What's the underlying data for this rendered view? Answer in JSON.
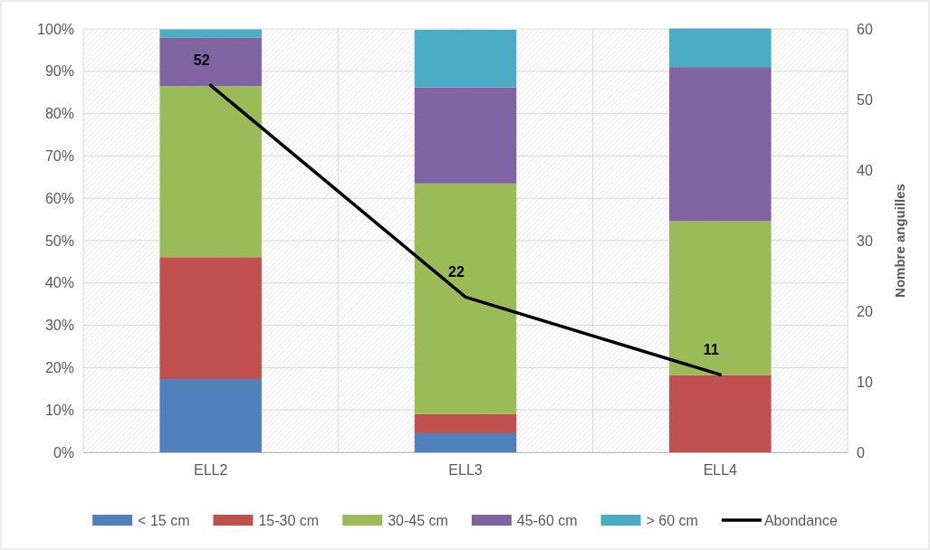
{
  "chart_data": {
    "type": "bar",
    "stacked": true,
    "categories": [
      "ELL2",
      "ELL3",
      "ELL4"
    ],
    "series": [
      {
        "name": "< 15 cm",
        "color": "#4f81bd",
        "values": [
          17.3,
          4.5,
          0
        ]
      },
      {
        "name": "15-30 cm",
        "color": "#c0504d",
        "values": [
          28.8,
          4.5,
          18.2
        ]
      },
      {
        "name": "30-45 cm",
        "color": "#9bbb59",
        "values": [
          40.4,
          54.5,
          36.4
        ]
      },
      {
        "name": "45-60 cm",
        "color": "#8064a2",
        "values": [
          11.5,
          22.7,
          36.4
        ]
      },
      {
        "name": "> 60 cm",
        "color": "#4bacc6",
        "values": [
          1.9,
          13.6,
          9.1
        ]
      },
      {
        "name": "Abondance",
        "type": "line",
        "axis": "y2",
        "color": "#000000",
        "values": [
          52,
          22,
          11
        ],
        "value_labels": [
          "52",
          "22",
          "11"
        ]
      }
    ],
    "ylim": [
      0,
      100
    ],
    "yticks": [
      {
        "value": 0,
        "label": "0%"
      },
      {
        "value": 10,
        "label": "10%"
      },
      {
        "value": 20,
        "label": "20%"
      },
      {
        "value": 30,
        "label": "30%"
      },
      {
        "value": 40,
        "label": "40%"
      },
      {
        "value": 50,
        "label": "50%"
      },
      {
        "value": 60,
        "label": "60%"
      },
      {
        "value": 70,
        "label": "70%"
      },
      {
        "value": 80,
        "label": "80%"
      },
      {
        "value": 90,
        "label": "90%"
      },
      {
        "value": 100,
        "label": "100%"
      }
    ],
    "y2lim": [
      0,
      60
    ],
    "y2ticks": [
      0,
      10,
      20,
      30,
      40,
      50,
      60
    ],
    "y2label": "Nombre anguilles",
    "grid": true,
    "legend": "bottom",
    "marker": "none",
    "line_style": "solid"
  }
}
